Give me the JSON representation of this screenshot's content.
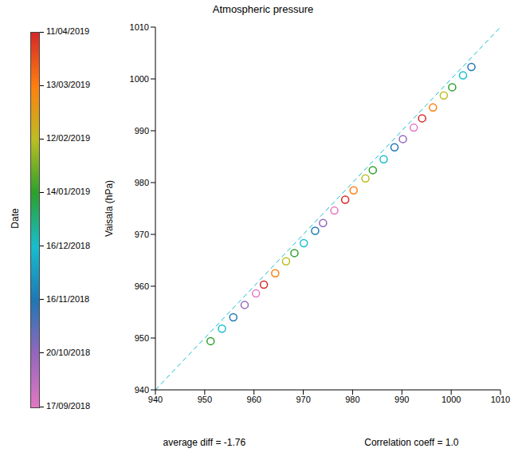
{
  "chart_data": {
    "type": "scatter",
    "title": "Atmospheric pressure",
    "y_label": "Vaisala (hPa)",
    "x": [
      951.2,
      953.5,
      955.8,
      958.1,
      960.4,
      962.0,
      964.3,
      966.5,
      968.2,
      970.1,
      972.4,
      974.0,
      976.3,
      978.5,
      980.2,
      982.6,
      984.1,
      986.3,
      988.5,
      990.2,
      992.4,
      994.1,
      996.3,
      998.5,
      1000.2,
      1002.4,
      1004.1
    ],
    "values": [
      949.4,
      951.8,
      954.0,
      956.4,
      958.6,
      960.3,
      962.5,
      964.8,
      966.4,
      968.3,
      970.7,
      972.2,
      974.6,
      976.7,
      978.5,
      980.8,
      982.4,
      984.5,
      986.8,
      988.4,
      990.6,
      992.4,
      994.5,
      996.8,
      998.4,
      1000.7,
      1002.3
    ],
    "colors": [
      "#2ca02c",
      "#17becf",
      "#1f77b4",
      "#9467bd",
      "#e377c2",
      "#d62728",
      "#ff7f0e",
      "#bcbd22",
      "#2ca02c",
      "#17becf",
      "#1f77b4",
      "#9467bd",
      "#e377c2",
      "#d62728",
      "#ff7f0e",
      "#bcbd22",
      "#2ca02c",
      "#17becf",
      "#1f77b4",
      "#9467bd",
      "#e377c2",
      "#d62728",
      "#ff7f0e",
      "#bcbd22",
      "#2ca02c",
      "#17becf",
      "#1f77b4"
    ],
    "marker": "circle",
    "xlim": [
      940,
      1010
    ],
    "xticks": [
      940,
      950,
      960,
      970,
      980,
      990,
      1000,
      1010
    ],
    "ylim": [
      940,
      1010
    ],
    "yticks": [
      940,
      950,
      960,
      970,
      980,
      990,
      1000,
      1010
    ],
    "grid": false,
    "identity_line": {
      "x": [
        940,
        1010
      ],
      "y": [
        940,
        1010
      ],
      "color": "#17becf",
      "line_style": "dashed"
    },
    "colorbar": {
      "label": "Date",
      "ticks": [
        "11/04/2019",
        "13/03/2019",
        "12/02/2019",
        "14/01/2019",
        "16/12/2018",
        "16/11/2018",
        "20/10/2018",
        "17/09/2018"
      ],
      "colors": [
        "#d62728",
        "#ff7f0e",
        "#bcbd22",
        "#2ca02c",
        "#17becf",
        "#1f77b4",
        "#9467bd",
        "#e377c2"
      ]
    },
    "annotations": [
      "average diff = -1.76",
      "Correlation coeff = 1.0"
    ]
  }
}
